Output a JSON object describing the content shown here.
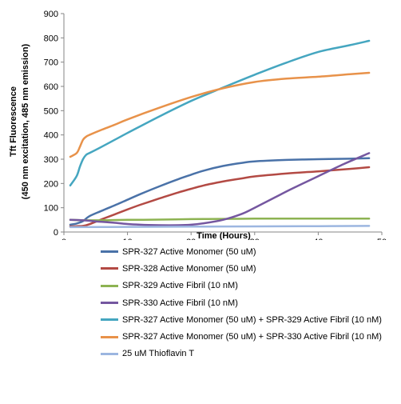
{
  "chart_data": {
    "type": "line",
    "title": "",
    "xlabel": "Time (Hours)",
    "ylabel": "Tft Fluorescence",
    "ylabel2": "(450 nm excitation, 485 nm emission)",
    "xlim": [
      0,
      50
    ],
    "ylim": [
      0,
      900
    ],
    "xticks": [
      0,
      10,
      20,
      30,
      40,
      50
    ],
    "yticks": [
      0,
      100,
      200,
      300,
      400,
      500,
      600,
      700,
      800,
      900
    ],
    "grid": false,
    "legend_position": "bottom",
    "series": [
      {
        "name": "SPR-327 Active Monomer (50 uM)",
        "color": "#4a72a8",
        "x": [
          1,
          2,
          3,
          4,
          6,
          8,
          10,
          12,
          15,
          18,
          20,
          22,
          25,
          28,
          30,
          35,
          40,
          45,
          48
        ],
        "y": [
          30,
          35,
          45,
          65,
          88,
          110,
          133,
          156,
          188,
          218,
          236,
          253,
          272,
          285,
          291,
          297,
          300,
          302,
          304
        ]
      },
      {
        "name": "SPR-328 Active Monomer (50 uM)",
        "color": "#b34a44",
        "x": [
          1,
          2,
          3,
          4,
          6,
          8,
          10,
          12,
          15,
          18,
          20,
          22,
          25,
          28,
          30,
          35,
          40,
          45,
          48
        ],
        "y": [
          23,
          24,
          25,
          32,
          53,
          73,
          93,
          112,
          138,
          163,
          178,
          192,
          208,
          221,
          229,
          241,
          250,
          260,
          267
        ]
      },
      {
        "name": "SPR-329 Active Fibril (10 nM)",
        "color": "#8db352",
        "x": [
          1,
          5,
          10,
          15,
          20,
          25,
          30,
          35,
          40,
          45,
          48
        ],
        "y": [
          50,
          48,
          50,
          51,
          53,
          54,
          55,
          55,
          55,
          55,
          55
        ]
      },
      {
        "name": "SPR-330 Active Fibril (10 nM)",
        "color": "#7557a0",
        "x": [
          1,
          3,
          5,
          8,
          10,
          12,
          15,
          18,
          20,
          22,
          25,
          28,
          30,
          33,
          36,
          40,
          44,
          48
        ],
        "y": [
          50,
          48,
          44,
          38,
          33,
          30,
          28,
          28,
          30,
          36,
          50,
          75,
          100,
          140,
          180,
          230,
          280,
          325
        ]
      },
      {
        "name": "SPR-327 Active Monomer (50 uM) + SPR-329 Active Fibril (10 nM)",
        "color": "#45a6c0",
        "x": [
          1,
          2,
          2.5,
          3,
          3.5,
          4,
          6,
          8,
          10,
          15,
          20,
          25,
          30,
          35,
          40,
          45,
          48
        ],
        "y": [
          192,
          230,
          268,
          300,
          318,
          325,
          352,
          380,
          408,
          476,
          540,
          595,
          648,
          698,
          742,
          770,
          788
        ]
      },
      {
        "name": "SPR-327 Active Monomer (50 uM) + SPR-330 Active Fibril (10 nM)",
        "color": "#e8924a",
        "x": [
          1,
          2,
          2.5,
          3,
          3.5,
          4,
          6,
          8,
          10,
          15,
          20,
          25,
          30,
          35,
          40,
          45,
          48
        ],
        "y": [
          310,
          325,
          350,
          380,
          393,
          400,
          422,
          442,
          464,
          512,
          556,
          592,
          618,
          632,
          640,
          650,
          656
        ]
      },
      {
        "name": "25 uM Thioflavin T",
        "color": "#9cb6e0",
        "x": [
          1,
          10,
          20,
          30,
          40,
          48
        ],
        "y": [
          20,
          21,
          22,
          23,
          24,
          25
        ]
      }
    ]
  }
}
